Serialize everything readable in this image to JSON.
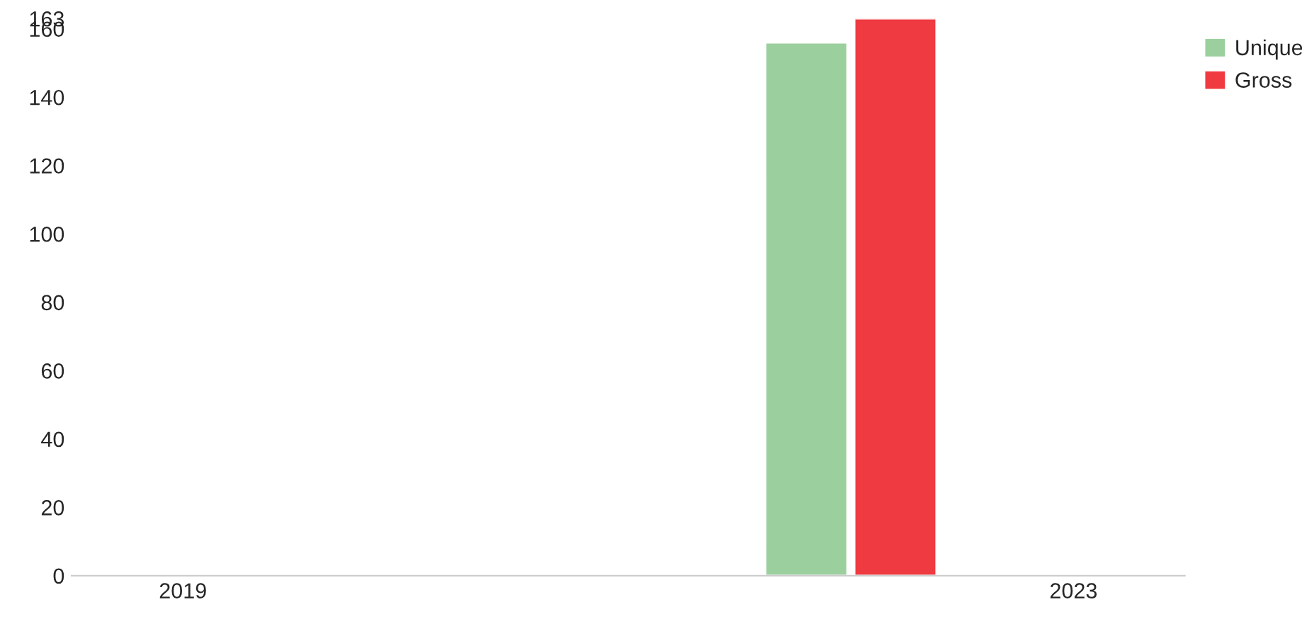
{
  "chart_data": {
    "type": "bar",
    "categories": [
      "2019",
      null,
      null,
      null,
      "2023"
    ],
    "series": [
      {
        "name": "Unique",
        "color": "#9ccf9e",
        "values": [
          null,
          null,
          null,
          156,
          null
        ]
      },
      {
        "name": "Gross",
        "color": "#ee3a40",
        "values": [
          null,
          null,
          null,
          163,
          null
        ]
      }
    ],
    "ylim": [
      0,
      163
    ],
    "yticks": [
      0,
      20,
      40,
      60,
      80,
      100,
      120,
      140,
      160,
      163
    ],
    "grid": false,
    "legend": "top right"
  }
}
